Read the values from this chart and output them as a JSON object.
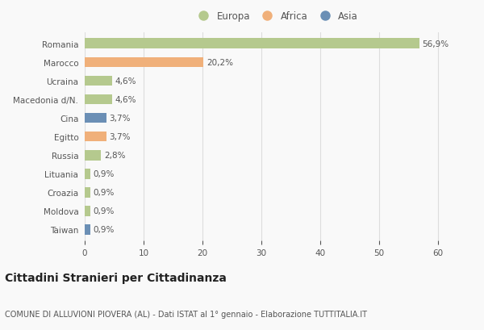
{
  "categories": [
    "Romania",
    "Marocco",
    "Ucraina",
    "Macedonia d/N.",
    "Cina",
    "Egitto",
    "Russia",
    "Lituania",
    "Croazia",
    "Moldova",
    "Taiwan"
  ],
  "values": [
    56.9,
    20.2,
    4.6,
    4.6,
    3.7,
    3.7,
    2.8,
    0.9,
    0.9,
    0.9,
    0.9
  ],
  "labels": [
    "56,9%",
    "20,2%",
    "4,6%",
    "4,6%",
    "3,7%",
    "3,7%",
    "2,8%",
    "0,9%",
    "0,9%",
    "0,9%",
    "0,9%"
  ],
  "continents": [
    "Europa",
    "Africa",
    "Europa",
    "Europa",
    "Asia",
    "Africa",
    "Europa",
    "Europa",
    "Europa",
    "Europa",
    "Asia"
  ],
  "colors": {
    "Europa": "#b5c98e",
    "Africa": "#f0b07a",
    "Asia": "#6b8fb5"
  },
  "legend_labels": [
    "Europa",
    "Africa",
    "Asia"
  ],
  "legend_colors": [
    "#b5c98e",
    "#f0b07a",
    "#6b8fb5"
  ],
  "title": "Cittadini Stranieri per Cittadinanza",
  "subtitle": "COMUNE DI ALLUVIONI PIOVERA (AL) - Dati ISTAT al 1° gennaio - Elaborazione TUTTITALIA.IT",
  "xlim": [
    0,
    65
  ],
  "xticks": [
    0,
    10,
    20,
    30,
    40,
    50,
    60
  ],
  "bg_color": "#f9f9f9",
  "grid_color": "#dddddd",
  "bar_height": 0.55,
  "label_fontsize": 7.5,
  "tick_fontsize": 7.5,
  "title_fontsize": 10,
  "subtitle_fontsize": 7
}
